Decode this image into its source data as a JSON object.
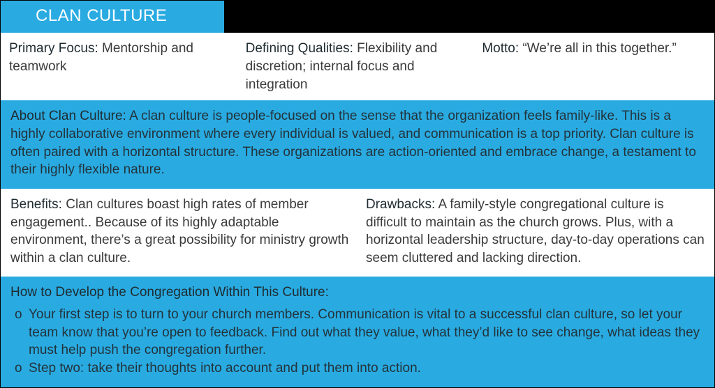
{
  "colors": {
    "accent": "#29abe2",
    "titleText": "#ffffff",
    "darkBar": "#000000",
    "bodyTextDark": "#3a3a3a",
    "blueBodyText": "#23333b"
  },
  "title": "CLAN CULTURE",
  "row1": {
    "focus_label": "Primary Focus:",
    "focus_value": "Mentorship and teamwork",
    "qualities_label": "Defining Qualities:",
    "qualities_value": "Flexibility and discretion; internal focus and integration",
    "motto_label": "Motto:",
    "motto_value": "“We’re all in this together.”"
  },
  "about": {
    "label": "About Clan Culture:",
    "text": "A clan culture is people-focused on the sense that the organization feels family-like. This is a highly collaborative environment where every individual is valued, and communication is a top priority. Clan culture is often paired with a horizontal structure. These organizations are action-oriented and embrace change, a testament to their highly flexible nature."
  },
  "benefits": {
    "label": "Benefits:",
    "text": "Clan cultures boast high rates of member engagement.. Because of its highly adaptable environment, there’s a great possibility for ministry growth within a clan culture."
  },
  "drawbacks": {
    "label": "Drawbacks:",
    "text": "A family-style congregational culture is difficult to maintain as the church grows. Plus, with a horizontal leadership structure, day-to-day operations can seem cluttered and lacking direction."
  },
  "develop": {
    "label": "How to Develop the Congregation Within This Culture:",
    "bullet": "o",
    "items": [
      "Your first step is to turn to your church members. Communication is vital to a successful clan culture, so let your team know that you’re open to feedback. Find out what they value, what they’d like to see change, what ideas they must help push the congregation further.",
      "Step two: take their thoughts into account and put them into action."
    ]
  }
}
